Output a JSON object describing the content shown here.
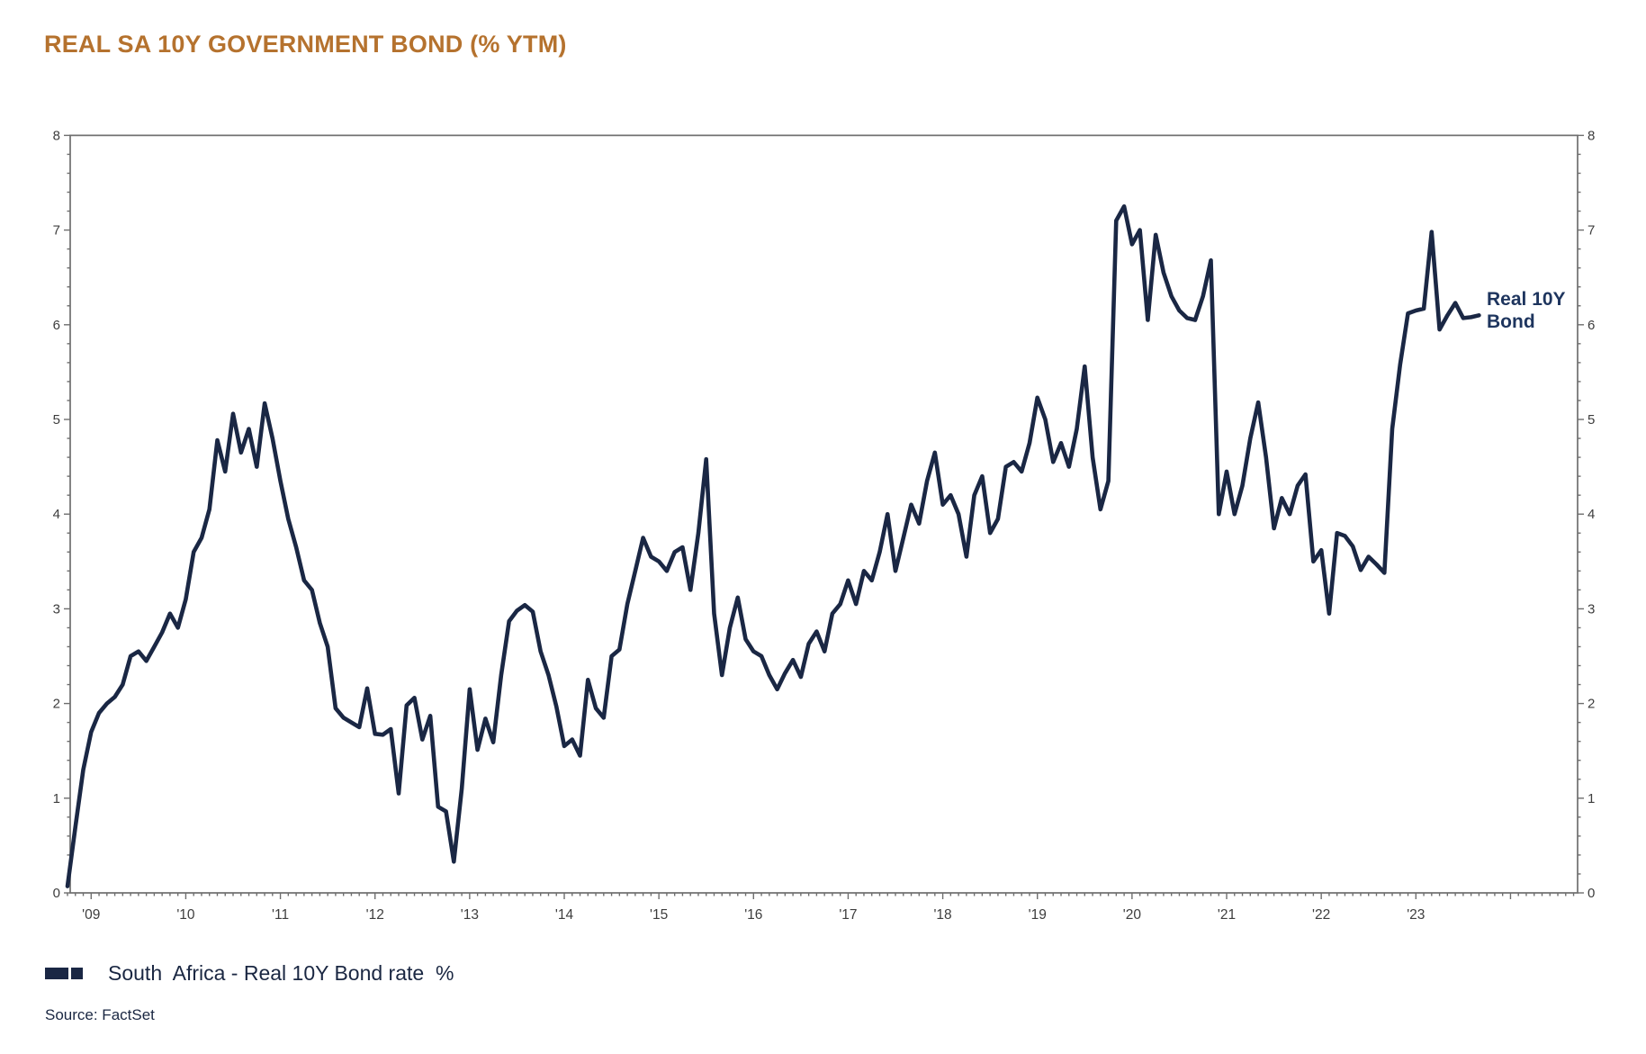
{
  "title": {
    "text": "REAL SA 10Y GOVERNMENT BOND (% YTM)"
  },
  "annotation": {
    "line1": "Real 10Y",
    "line2": "Bond"
  },
  "legend": {
    "label": "South  Africa - Real 10Y Bond rate  %"
  },
  "source": {
    "text": "Source: FactSet"
  },
  "colors": {
    "title": "#B5722E",
    "line": "#1A2744",
    "annotation": "#1E355E",
    "axis": "#6E6E6E",
    "tick_label": "#3D3D3D",
    "legend_text": "#1A2742"
  },
  "chart_data": {
    "type": "line",
    "title": "REAL SA 10Y GOVERNMENT BOND (% YTM)",
    "series_name": "South Africa - Real 10Y Bond rate %",
    "frequency": "monthly",
    "start_month": "2008-10",
    "end_month": "2023-09",
    "ylim": [
      0,
      8
    ],
    "y_ticks": [
      0,
      1,
      2,
      3,
      4,
      5,
      6,
      7,
      8
    ],
    "y_minor_step": 0.2,
    "grid": false,
    "legend_position": "bottom-left",
    "x_tick_labels": [
      "'09",
      "'10",
      "'11",
      "'12",
      "'13",
      "'14",
      "'15",
      "'16",
      "'17",
      "'18",
      "'19",
      "'20",
      "'21",
      "'22",
      "'23"
    ],
    "values": [
      0.07,
      0.7,
      1.3,
      1.7,
      1.9,
      2.0,
      2.07,
      2.2,
      2.5,
      2.55,
      2.45,
      2.6,
      2.75,
      2.95,
      2.8,
      3.1,
      3.6,
      3.75,
      4.05,
      4.78,
      4.45,
      5.06,
      4.65,
      4.9,
      4.5,
      5.17,
      4.8,
      4.35,
      3.95,
      3.65,
      3.3,
      3.2,
      2.85,
      2.6,
      1.95,
      1.85,
      1.8,
      1.75,
      2.16,
      1.68,
      1.67,
      1.73,
      1.05,
      1.98,
      2.06,
      1.62,
      1.87,
      0.91,
      0.86,
      0.33,
      1.1,
      2.15,
      1.51,
      1.84,
      1.59,
      2.3,
      2.87,
      2.98,
      3.04,
      2.97,
      2.55,
      2.3,
      1.97,
      1.55,
      1.62,
      1.45,
      2.25,
      1.95,
      1.85,
      2.5,
      2.57,
      3.05,
      3.4,
      3.75,
      3.55,
      3.5,
      3.4,
      3.6,
      3.65,
      3.2,
      3.8,
      4.58,
      2.95,
      2.3,
      2.8,
      3.12,
      2.68,
      2.55,
      2.5,
      2.3,
      2.15,
      2.32,
      2.46,
      2.28,
      2.63,
      2.76,
      2.55,
      2.95,
      3.05,
      3.3,
      3.05,
      3.4,
      3.3,
      3.6,
      4.0,
      3.4,
      3.75,
      4.1,
      3.9,
      4.35,
      4.65,
      4.1,
      4.2,
      4.0,
      3.55,
      4.2,
      4.4,
      3.8,
      3.95,
      4.5,
      4.55,
      4.45,
      4.75,
      5.23,
      5.0,
      4.55,
      4.75,
      4.5,
      4.9,
      5.56,
      4.6,
      4.05,
      4.35,
      7.1,
      7.25,
      6.85,
      7.0,
      6.05,
      6.95,
      6.55,
      6.3,
      6.15,
      6.07,
      6.05,
      6.3,
      6.68,
      4.0,
      4.45,
      4.0,
      4.3,
      4.8,
      5.18,
      4.6,
      3.85,
      4.17,
      4.0,
      4.3,
      4.42,
      3.5,
      3.62,
      2.95,
      3.8,
      3.77,
      3.66,
      3.41,
      3.55,
      3.47,
      3.38,
      4.9,
      5.58,
      6.12,
      6.15,
      6.17,
      6.98,
      5.95,
      6.1,
      6.23,
      6.07,
      6.08,
      6.1
    ]
  }
}
